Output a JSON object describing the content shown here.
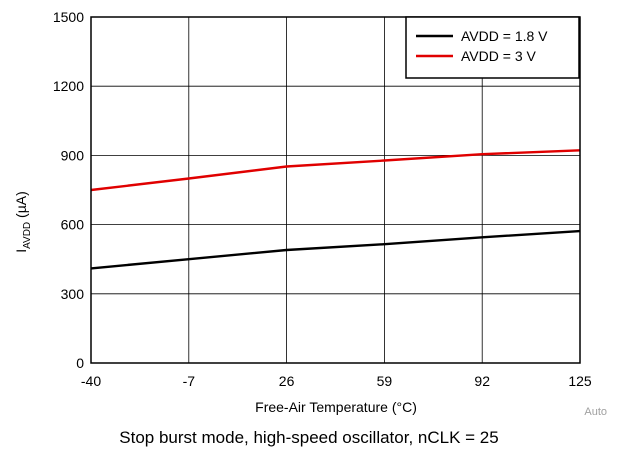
{
  "chart_data": {
    "type": "line",
    "xlabel": "Free-Air Temperature (°C)",
    "ylabel_main": "I",
    "ylabel_sub": "AVDD",
    "ylabel_unit": " (µA)",
    "x_ticks": [
      -40,
      -7,
      26,
      59,
      92,
      125
    ],
    "y_ticks": [
      0,
      300,
      600,
      900,
      1200,
      1500
    ],
    "xlim": [
      -40,
      125
    ],
    "ylim": [
      0,
      1500
    ],
    "grid": true,
    "legend_position": "top-right",
    "series": [
      {
        "name": "AVDD = 1.8 V",
        "color": "#000000",
        "x": [
          -40,
          -7,
          26,
          59,
          92,
          125
        ],
        "y": [
          410,
          450,
          490,
          515,
          545,
          572
        ]
      },
      {
        "name": "AVDD = 3 V",
        "color": "#e00000",
        "x": [
          -40,
          -7,
          26,
          59,
          92,
          125
        ],
        "y": [
          750,
          800,
          852,
          878,
          905,
          922
        ]
      }
    ]
  },
  "caption": "Stop burst mode, high-speed oscillator, nCLK = 25",
  "watermark": "Auto"
}
